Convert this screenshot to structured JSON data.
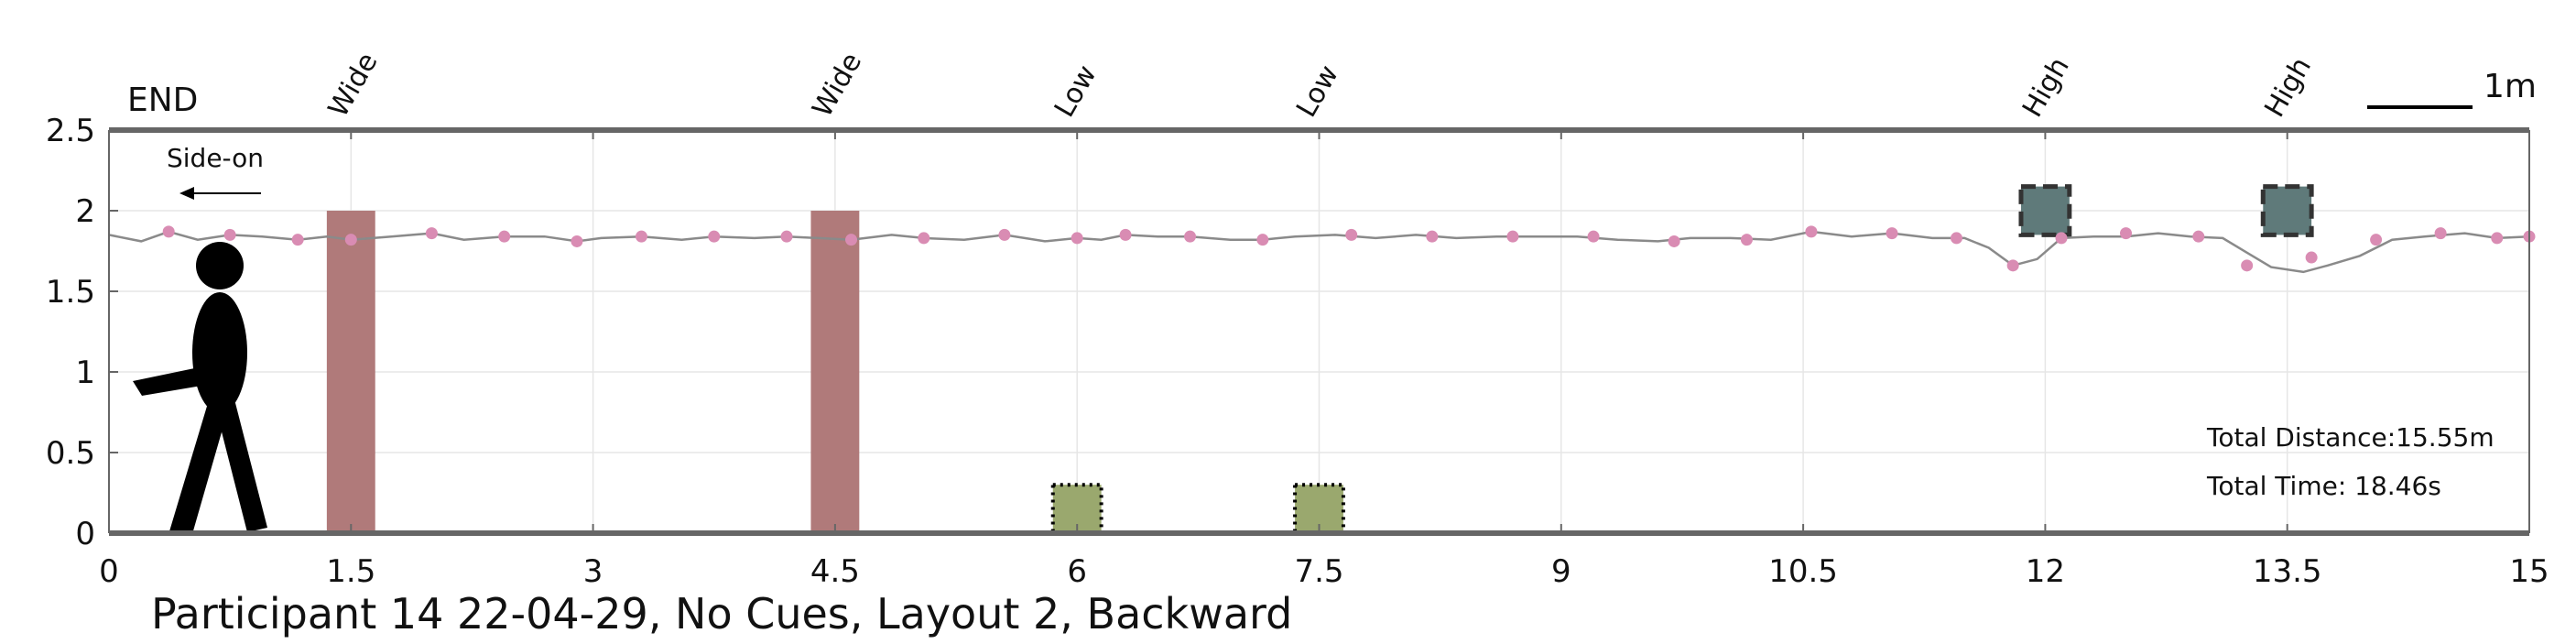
{
  "chart_data": {
    "type": "line",
    "title": "Participant 14 22-04-29, No Cues, Layout 2, Backward",
    "xlabel": "",
    "ylabel": "",
    "xlim": [
      0,
      15
    ],
    "ylim": [
      0,
      2.5
    ],
    "x_ticks": [
      "0",
      "1.5",
      "3",
      "4.5",
      "6",
      "7.5",
      "9",
      "10.5",
      "12",
      "13.5",
      "15"
    ],
    "x_tick_values": [
      0,
      1.5,
      3,
      4.5,
      6,
      7.5,
      9,
      10.5,
      12,
      13.5,
      15
    ],
    "y_ticks": [
      "0",
      "0.5",
      "1",
      "1.5",
      "2",
      "2.5"
    ],
    "y_tick_values": [
      0,
      0.5,
      1,
      1.5,
      2,
      2.5
    ],
    "grid": true,
    "end_label": "END",
    "direction_label": "Side-on",
    "scale_bar_label": "1m",
    "total_distance": "Total Distance:15.55m",
    "total_time": "Total Time: 18.46s",
    "obstacles": [
      {
        "label": "Wide",
        "kind": "wide",
        "x_start": 1.35,
        "x_end": 1.65,
        "y_bottom": 0,
        "y_top": 2.0
      },
      {
        "label": "Wide",
        "kind": "wide",
        "x_start": 4.35,
        "x_end": 4.65,
        "y_bottom": 0,
        "y_top": 2.0
      },
      {
        "label": "Low",
        "kind": "low",
        "x_start": 5.85,
        "x_end": 6.15,
        "y_bottom": 0,
        "y_top": 0.3
      },
      {
        "label": "Low",
        "kind": "low",
        "x_start": 7.35,
        "x_end": 7.65,
        "y_bottom": 0,
        "y_top": 0.3
      },
      {
        "label": "High",
        "kind": "high",
        "x_start": 11.85,
        "x_end": 12.15,
        "y_bottom": 1.85,
        "y_top": 2.15
      },
      {
        "label": "High",
        "kind": "high",
        "x_start": 13.35,
        "x_end": 13.65,
        "y_bottom": 1.85,
        "y_top": 2.15
      }
    ],
    "series": [
      {
        "values": [
          [
            0,
            1.85
          ],
          [
            0.2,
            1.81
          ],
          [
            0.37,
            1.87
          ],
          [
            0.55,
            1.82
          ],
          [
            0.75,
            1.85
          ],
          [
            0.95,
            1.84
          ],
          [
            1.17,
            1.82
          ],
          [
            1.35,
            1.84
          ],
          [
            1.5,
            1.82
          ],
          [
            1.75,
            1.84
          ],
          [
            2.0,
            1.86
          ],
          [
            2.2,
            1.82
          ],
          [
            2.45,
            1.84
          ],
          [
            2.7,
            1.84
          ],
          [
            2.9,
            1.81
          ],
          [
            3.05,
            1.83
          ],
          [
            3.3,
            1.84
          ],
          [
            3.55,
            1.82
          ],
          [
            3.75,
            1.84
          ],
          [
            4.0,
            1.83
          ],
          [
            4.2,
            1.84
          ],
          [
            4.4,
            1.83
          ],
          [
            4.6,
            1.82
          ],
          [
            4.85,
            1.85
          ],
          [
            5.05,
            1.83
          ],
          [
            5.3,
            1.82
          ],
          [
            5.55,
            1.85
          ],
          [
            5.8,
            1.81
          ],
          [
            6.0,
            1.83
          ],
          [
            6.15,
            1.82
          ],
          [
            6.3,
            1.85
          ],
          [
            6.5,
            1.84
          ],
          [
            6.7,
            1.84
          ],
          [
            6.95,
            1.82
          ],
          [
            7.15,
            1.82
          ],
          [
            7.35,
            1.84
          ],
          [
            7.6,
            1.85
          ],
          [
            7.85,
            1.83
          ],
          [
            8.1,
            1.85
          ],
          [
            8.35,
            1.83
          ],
          [
            8.6,
            1.84
          ],
          [
            8.85,
            1.84
          ],
          [
            9.1,
            1.84
          ],
          [
            9.35,
            1.82
          ],
          [
            9.6,
            1.81
          ],
          [
            9.8,
            1.83
          ],
          [
            10.05,
            1.83
          ],
          [
            10.3,
            1.82
          ],
          [
            10.55,
            1.87
          ],
          [
            10.8,
            1.84
          ],
          [
            11.05,
            1.86
          ],
          [
            11.3,
            1.83
          ],
          [
            11.5,
            1.83
          ],
          [
            11.65,
            1.77
          ],
          [
            11.8,
            1.66
          ],
          [
            11.95,
            1.7
          ],
          [
            12.1,
            1.83
          ],
          [
            12.3,
            1.84
          ],
          [
            12.5,
            1.84
          ],
          [
            12.7,
            1.86
          ],
          [
            12.9,
            1.84
          ],
          [
            13.1,
            1.83
          ],
          [
            13.25,
            1.74
          ],
          [
            13.4,
            1.65
          ],
          [
            13.6,
            1.62
          ],
          [
            13.75,
            1.66
          ],
          [
            13.95,
            1.72
          ],
          [
            14.15,
            1.82
          ],
          [
            14.35,
            1.84
          ],
          [
            14.6,
            1.86
          ],
          [
            14.8,
            1.83
          ],
          [
            15.0,
            1.84
          ]
        ],
        "markers": [
          [
            0.37,
            1.87
          ],
          [
            0.75,
            1.85
          ],
          [
            1.17,
            1.82
          ],
          [
            1.5,
            1.82
          ],
          [
            2.0,
            1.86
          ],
          [
            2.45,
            1.84
          ],
          [
            2.9,
            1.81
          ],
          [
            3.3,
            1.84
          ],
          [
            3.75,
            1.84
          ],
          [
            4.2,
            1.84
          ],
          [
            4.6,
            1.82
          ],
          [
            5.05,
            1.83
          ],
          [
            5.55,
            1.85
          ],
          [
            6.0,
            1.83
          ],
          [
            6.3,
            1.85
          ],
          [
            6.7,
            1.84
          ],
          [
            7.15,
            1.82
          ],
          [
            7.7,
            1.85
          ],
          [
            8.2,
            1.84
          ],
          [
            8.7,
            1.84
          ],
          [
            9.2,
            1.84
          ],
          [
            9.7,
            1.81
          ],
          [
            10.15,
            1.82
          ],
          [
            10.55,
            1.87
          ],
          [
            11.05,
            1.86
          ],
          [
            11.45,
            1.83
          ],
          [
            11.8,
            1.66
          ],
          [
            12.1,
            1.83
          ],
          [
            12.5,
            1.86
          ],
          [
            12.95,
            1.84
          ],
          [
            13.25,
            1.66
          ],
          [
            13.65,
            1.71
          ],
          [
            14.05,
            1.82
          ],
          [
            14.45,
            1.86
          ],
          [
            14.8,
            1.83
          ],
          [
            15.0,
            1.84
          ]
        ]
      }
    ]
  },
  "colors": {
    "wide": "#b07a7a",
    "low": "#9aa86e",
    "high": "#5f7a7a",
    "trajectory": "#8a8a8a",
    "marker": "#d98cb3",
    "axis": "#666666",
    "grid": "#e6e6e6"
  }
}
